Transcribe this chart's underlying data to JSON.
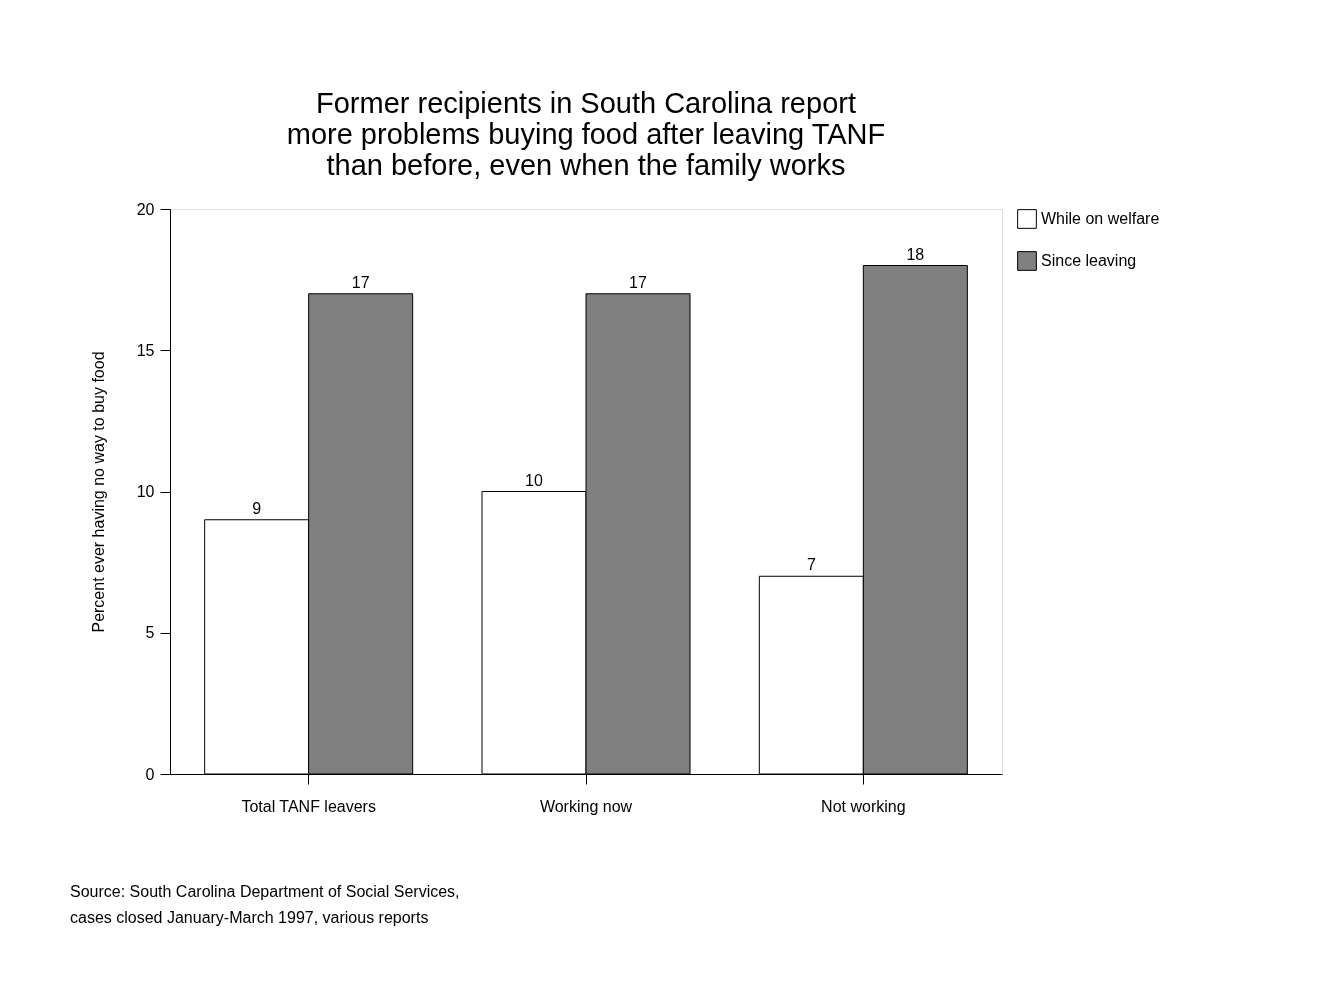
{
  "chart_data": {
    "type": "bar",
    "title": [
      "Former recipients in South Carolina report",
      "more problems buying food after leaving TANF",
      "than before, even when the family works"
    ],
    "ylabel": "Percent ever having no way to buy food",
    "categories": [
      "Total TANF leavers",
      "Working now",
      "Not working"
    ],
    "series": [
      {
        "name": "While on welfare",
        "color": "#ffffff",
        "values": [
          9,
          10,
          7
        ]
      },
      {
        "name": "Since leaving",
        "color": "#808080",
        "values": [
          17,
          17,
          18
        ]
      }
    ],
    "ylim": [
      0,
      20
    ],
    "yticks": [
      0,
      5,
      10,
      15,
      20
    ],
    "grid": false,
    "legend": "right",
    "data_labels": true,
    "annotations": [
      "Source: South Carolina Department of Social Services,",
      "cases closed January-March 1997, various reports"
    ]
  }
}
